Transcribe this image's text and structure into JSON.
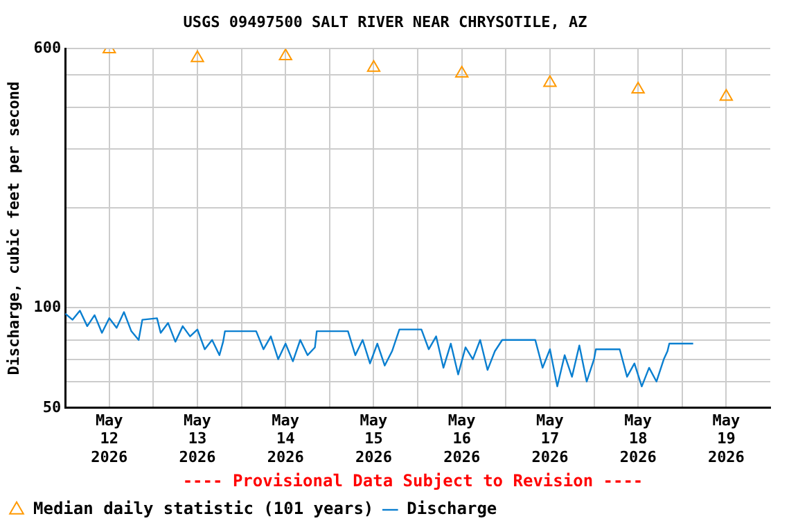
{
  "chart_data": {
    "type": "line",
    "title": "USGS 09497500 SALT RIVER NEAR CHRYSOTILE, AZ",
    "ylabel": "Discharge, cubic feet per second",
    "annotations": [
      "---- Provisional Data Subject to Revision ----"
    ],
    "log": "y",
    "grid": true,
    "legend": "bottom",
    "ylim": [
      50,
      600
    ],
    "yticks": [
      50,
      {
        "value": 60,
        "label": null
      },
      {
        "value": 70,
        "label": null
      },
      {
        "value": 80,
        "label": null
      },
      {
        "value": 90,
        "label": null
      },
      100,
      {
        "value": 200,
        "label": null
      },
      {
        "value": 300,
        "label": null
      },
      {
        "value": 400,
        "label": null
      },
      {
        "value": 500,
        "label": null
      },
      600
    ],
    "xlim": [
      "2026-05-12T00:00",
      "2026-05-20T00:00"
    ],
    "xticks": [
      {
        "value": "2026-05-12T12:00",
        "label": "May\n12\n2026"
      },
      {
        "value": "2026-05-13T00:00",
        "label": null
      },
      {
        "value": "2026-05-13T12:00",
        "label": "May\n13\n2026"
      },
      {
        "value": "2026-05-14T00:00",
        "label": null
      },
      {
        "value": "2026-05-14T12:00",
        "label": "May\n14\n2026"
      },
      {
        "value": "2026-05-15T00:00",
        "label": null
      },
      {
        "value": "2026-05-15T12:00",
        "label": "May\n15\n2026"
      },
      {
        "value": "2026-05-16T00:00",
        "label": null
      },
      {
        "value": "2026-05-16T12:00",
        "label": "May\n16\n2026"
      },
      {
        "value": "2026-05-17T00:00",
        "label": null
      },
      {
        "value": "2026-05-17T12:00",
        "label": "May\n17\n2026"
      },
      {
        "value": "2026-05-18T00:00",
        "label": null
      },
      {
        "value": "2026-05-18T12:00",
        "label": "May\n18\n2026"
      },
      {
        "value": "2026-05-19T00:00",
        "label": null
      },
      {
        "value": "2026-05-19T12:00",
        "label": "May\n19\n2026"
      }
    ],
    "series": [
      {
        "name": "Median daily statistic (101 years)",
        "type": "scatter",
        "marker": "triangle",
        "color": "#ff9900",
        "x": [
          "2026-05-12T12:00",
          "2026-05-13T12:00",
          "2026-05-14T12:00",
          "2026-05-15T12:00",
          "2026-05-16T12:00",
          "2026-05-17T12:00",
          "2026-05-18T12:00",
          "2026-05-19T12:00"
        ],
        "values": [
          598,
          563,
          570,
          526,
          506,
          474,
          453,
          431
        ]
      },
      {
        "name": "Discharge",
        "type": "line",
        "marker": "none",
        "line_style": "solid",
        "color": "#0a7fd0",
        "x": [
          "2026-05-12T00:00",
          "2026-05-12T02:00",
          "2026-05-12T04:00",
          "2026-05-12T06:00",
          "2026-05-12T08:00",
          "2026-05-12T10:00",
          "2026-05-12T12:00",
          "2026-05-12T14:00",
          "2026-05-12T16:00",
          "2026-05-12T18:00",
          "2026-05-12T20:00",
          "2026-05-12T21:00",
          "2026-05-13T01:00",
          "2026-05-13T02:00",
          "2026-05-13T04:00",
          "2026-05-13T06:00",
          "2026-05-13T08:00",
          "2026-05-13T10:00",
          "2026-05-13T12:00",
          "2026-05-13T14:00",
          "2026-05-13T16:00",
          "2026-05-13T18:00",
          "2026-05-13T19:00",
          "2026-05-13T19:30",
          "2026-05-14T04:00",
          "2026-05-14T06:00",
          "2026-05-14T08:00",
          "2026-05-14T10:00",
          "2026-05-14T12:00",
          "2026-05-14T14:00",
          "2026-05-14T16:00",
          "2026-05-14T18:00",
          "2026-05-14T20:00",
          "2026-05-14T20:30",
          "2026-05-15T05:00",
          "2026-05-15T07:00",
          "2026-05-15T09:00",
          "2026-05-15T11:00",
          "2026-05-15T13:00",
          "2026-05-15T15:00",
          "2026-05-15T17:00",
          "2026-05-15T19:00",
          "2026-05-16T01:00",
          "2026-05-16T03:00",
          "2026-05-16T05:00",
          "2026-05-16T07:00",
          "2026-05-16T09:00",
          "2026-05-16T11:00",
          "2026-05-16T13:00",
          "2026-05-16T15:00",
          "2026-05-16T17:00",
          "2026-05-16T19:00",
          "2026-05-16T21:00",
          "2026-05-16T23:00",
          "2026-05-17T08:00",
          "2026-05-17T10:00",
          "2026-05-17T12:00",
          "2026-05-17T14:00",
          "2026-05-17T16:00",
          "2026-05-17T18:00",
          "2026-05-17T20:00",
          "2026-05-17T22:00",
          "2026-05-18T00:00",
          "2026-05-18T00:30",
          "2026-05-18T07:00",
          "2026-05-18T09:00",
          "2026-05-18T11:00",
          "2026-05-18T13:00",
          "2026-05-18T15:00",
          "2026-05-18T17:00",
          "2026-05-18T19:00",
          "2026-05-18T20:00",
          "2026-05-18T20:30",
          "2026-05-19T03:00"
        ],
        "values": [
          96,
          92,
          98,
          88,
          95,
          84,
          93,
          87,
          97,
          85,
          80,
          92,
          93,
          84,
          90,
          79,
          88,
          82,
          86,
          75,
          80,
          72,
          79,
          85,
          85,
          75,
          82,
          70,
          78,
          69,
          80,
          72,
          76,
          85,
          85,
          72,
          80,
          68,
          78,
          67,
          74,
          86,
          86,
          75,
          82,
          66,
          78,
          63,
          76,
          70,
          80,
          65,
          74,
          80,
          80,
          66,
          75,
          58,
          72,
          62,
          77,
          60,
          70,
          75,
          75,
          62,
          68,
          58,
          66,
          60,
          70,
          74,
          78,
          78
        ]
      }
    ]
  }
}
